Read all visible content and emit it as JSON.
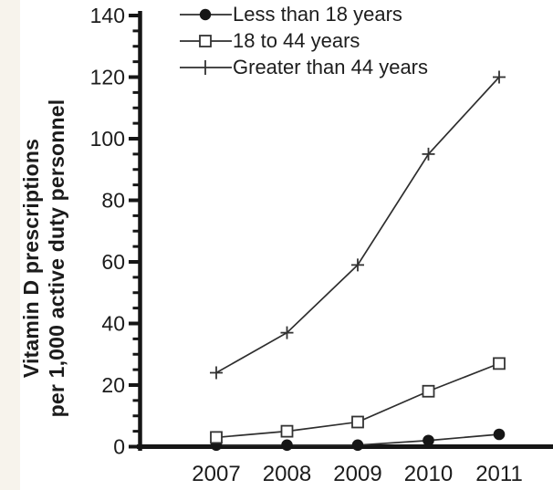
{
  "figure": {
    "background": "#ffffff",
    "left_strip_color": "#f7f3ec"
  },
  "chart_data": {
    "type": "line",
    "title": "",
    "xlabel": "",
    "ylabel_line1": "Vitamin D prescriptions",
    "ylabel_line2": "per 1,000 active duty personnel",
    "x": [
      2007,
      2008,
      2009,
      2010,
      2011
    ],
    "ylim": [
      0,
      140
    ],
    "y_major_tick_step": 20,
    "y_minor_tick_step": 5,
    "y_tick_labels": [
      "0",
      "20",
      "40",
      "60",
      "80",
      "100",
      "120",
      "140"
    ],
    "grid": false,
    "legend_position": "top-center",
    "series": [
      {
        "name": "Less than 18 years",
        "marker": "filled-circle",
        "values": [
          0.5,
          0.5,
          0.5,
          2,
          4
        ]
      },
      {
        "name": "18 to 44 years",
        "marker": "open-square",
        "values": [
          3,
          5,
          8,
          18,
          27
        ]
      },
      {
        "name": "Greater than 44 years",
        "marker": "plus",
        "values": [
          24,
          37,
          59,
          95,
          120
        ]
      }
    ],
    "colors": {
      "line": "#2e2e2e",
      "marker_fill": "#161616",
      "axis": "#161616",
      "text": "#1c1c1c"
    }
  }
}
